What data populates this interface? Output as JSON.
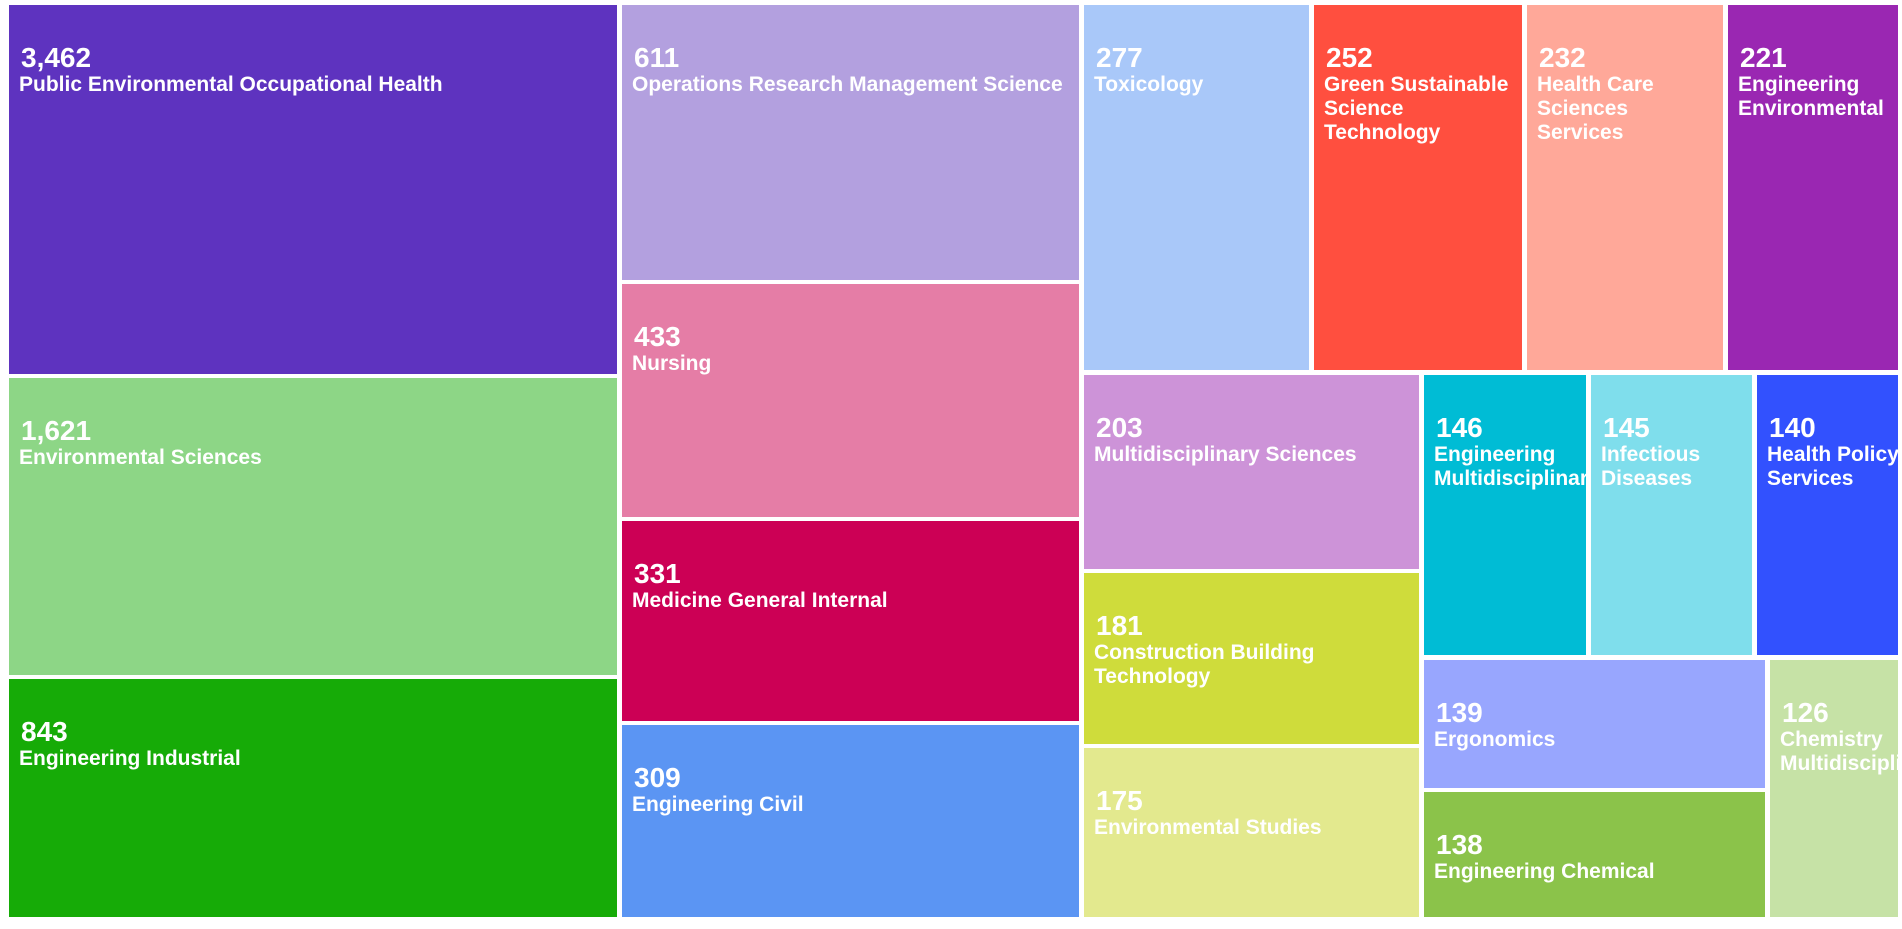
{
  "chart_data": {
    "type": "treemap",
    "title": "",
    "items": [
      {
        "label": "Public Environmental Occupational Health",
        "display_label": "Public Environmental Occupational Health",
        "value": 3462,
        "value_label": "3,462",
        "color": "#5e33bf"
      },
      {
        "label": "Environmental Sciences",
        "display_label": "Environmental Sciences",
        "value": 1621,
        "value_label": "1,621",
        "color": "#8dd686"
      },
      {
        "label": "Engineering Industrial",
        "display_label": "Engineering Industrial",
        "value": 843,
        "value_label": "843",
        "color": "#16ab07"
      },
      {
        "label": "Operations Research Management Science",
        "display_label": "Operations Research Management Science",
        "value": 611,
        "value_label": "611",
        "color": "#b3a0df"
      },
      {
        "label": "Nursing",
        "display_label": "Nursing",
        "value": 433,
        "value_label": "433",
        "color": "#e57da6"
      },
      {
        "label": "Medicine General Internal",
        "display_label": "Medicine General Internal",
        "value": 331,
        "value_label": "331",
        "color": "#cc0055"
      },
      {
        "label": "Engineering Civil",
        "display_label": "Engineering Civil",
        "value": 309,
        "value_label": "309",
        "color": "#5b95f3"
      },
      {
        "label": "Toxicology",
        "display_label": "Toxicology",
        "value": 277,
        "value_label": "277",
        "color": "#a9c8f9"
      },
      {
        "label": "Green Sustainable Science Technology",
        "display_label": "Green Sustainable\nScience\nTechnology",
        "value": 252,
        "value_label": "252",
        "color": "#ff4f3f"
      },
      {
        "label": "Health Care Sciences Services",
        "display_label": "Health Care\nSciences\nServices",
        "value": 232,
        "value_label": "232",
        "color": "#ffa899"
      },
      {
        "label": "Engineering Environmental",
        "display_label": "Engineering\nEnvironmental",
        "value": 221,
        "value_label": "221",
        "color": "#9a27b2"
      },
      {
        "label": "Multidisciplinary Sciences",
        "display_label": "Multidisciplinary Sciences",
        "value": 203,
        "value_label": "203",
        "color": "#cd93d8"
      },
      {
        "label": "Construction Building Technology",
        "display_label": "Construction Building\nTechnology",
        "value": 181,
        "value_label": "181",
        "color": "#cfdc3b"
      },
      {
        "label": "Environmental Studies",
        "display_label": "Environmental Studies",
        "value": 175,
        "value_label": "175",
        "color": "#e3e98e"
      },
      {
        "label": "Engineering Multidisciplinary",
        "display_label": "Engineering\nMultidisciplinary",
        "value": 146,
        "value_label": "146",
        "color": "#00bcd5"
      },
      {
        "label": "Infectious Diseases",
        "display_label": "Infectious\nDiseases",
        "value": 145,
        "value_label": "145",
        "color": "#7fdeec"
      },
      {
        "label": "Health Policy Services",
        "display_label": "Health Policy\nServices",
        "value": 140,
        "value_label": "140",
        "color": "#3251fe"
      },
      {
        "label": "Ergonomics",
        "display_label": "Ergonomics",
        "value": 139,
        "value_label": "139",
        "color": "#98a6fe"
      },
      {
        "label": "Engineering Chemical",
        "display_label": "Engineering Chemical",
        "value": 138,
        "value_label": "138",
        "color": "#8bc34a"
      },
      {
        "label": "Chemistry Multidisciplinary",
        "display_label": "Chemistry\nMultidisciplinary",
        "value": 126,
        "value_label": "126",
        "color": "#c6e2a6"
      }
    ]
  }
}
